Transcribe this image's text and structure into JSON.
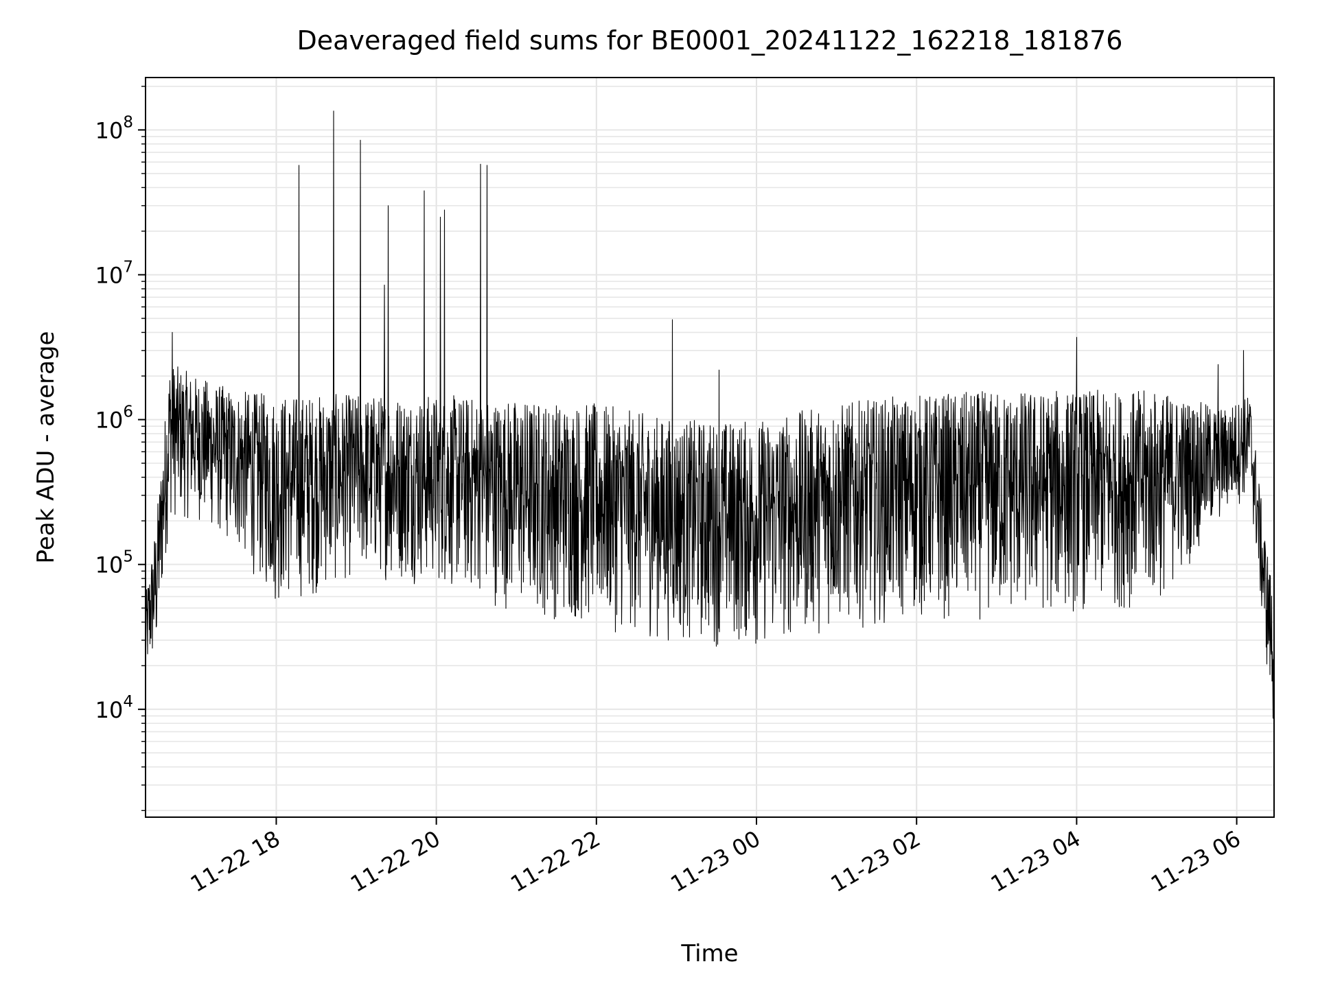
{
  "chart_data": {
    "type": "line",
    "title": "Deaveraged field sums for BE0001_20241122_162218_181876",
    "xlabel": "Time",
    "ylabel": "Peak ADU - average",
    "y_scale": "log",
    "ylim": [
      1800,
      230000000
    ],
    "xlim": [
      "2024-11-22 16:22",
      "2024-11-23 06:28"
    ],
    "grid": true,
    "line_color": "#000000",
    "x_ticks": [
      {
        "time": "2024-11-22 18:00",
        "label": "11-22 18"
      },
      {
        "time": "2024-11-22 20:00",
        "label": "11-22 20"
      },
      {
        "time": "2024-11-22 22:00",
        "label": "11-22 22"
      },
      {
        "time": "2024-11-23 00:00",
        "label": "11-23 00"
      },
      {
        "time": "2024-11-23 02:00",
        "label": "11-23 02"
      },
      {
        "time": "2024-11-23 04:00",
        "label": "11-23 04"
      },
      {
        "time": "2024-11-23 06:00",
        "label": "11-23 06"
      }
    ],
    "y_ticks": [
      {
        "value": 10000,
        "base": "10",
        "exp": "4"
      },
      {
        "value": 100000,
        "base": "10",
        "exp": "5"
      },
      {
        "value": 1000000,
        "base": "10",
        "exp": "6"
      },
      {
        "value": 10000000,
        "base": "10",
        "exp": "7"
      },
      {
        "value": 100000000,
        "base": "10",
        "exp": "8"
      }
    ],
    "envelope": [
      {
        "time": "2024-11-22 16:22",
        "low": 15000,
        "high": 60000
      },
      {
        "time": "2024-11-22 16:30",
        "low": 20000,
        "high": 200000
      },
      {
        "time": "2024-11-22 16:40",
        "low": 200000,
        "high": 2500000
      },
      {
        "time": "2024-11-22 17:00",
        "low": 200000,
        "high": 2000000
      },
      {
        "time": "2024-11-22 17:30",
        "low": 120000,
        "high": 1600000
      },
      {
        "time": "2024-11-22 18:00",
        "low": 50000,
        "high": 1500000
      },
      {
        "time": "2024-11-22 18:30",
        "low": 60000,
        "high": 1500000
      },
      {
        "time": "2024-11-22 19:00",
        "low": 80000,
        "high": 1500000
      },
      {
        "time": "2024-11-22 20:00",
        "low": 70000,
        "high": 1500000
      },
      {
        "time": "2024-11-22 21:00",
        "low": 45000,
        "high": 1400000
      },
      {
        "time": "2024-11-22 22:00",
        "low": 35000,
        "high": 1300000
      },
      {
        "time": "2024-11-22 23:00",
        "low": 28000,
        "high": 1000000
      },
      {
        "time": "2024-11-23 00:00",
        "low": 25000,
        "high": 1000000
      },
      {
        "time": "2024-11-23 01:00",
        "low": 35000,
        "high": 1300000
      },
      {
        "time": "2024-11-23 02:00",
        "low": 40000,
        "high": 1500000
      },
      {
        "time": "2024-11-23 03:00",
        "low": 40000,
        "high": 1600000
      },
      {
        "time": "2024-11-23 04:00",
        "low": 45000,
        "high": 1600000
      },
      {
        "time": "2024-11-23 05:00",
        "low": 50000,
        "high": 1600000
      },
      {
        "time": "2024-11-23 05:50",
        "low": 200000,
        "high": 1200000
      },
      {
        "time": "2024-11-23 06:10",
        "low": 300000,
        "high": 1500000
      },
      {
        "time": "2024-11-23 06:20",
        "low": 30000,
        "high": 200000
      },
      {
        "time": "2024-11-23 06:28",
        "low": 6000,
        "high": 60000
      }
    ],
    "spikes": [
      {
        "time": "2024-11-22 16:42",
        "value": 4000000
      },
      {
        "time": "2024-11-22 18:17",
        "value": 57000000
      },
      {
        "time": "2024-11-22 18:43",
        "value": 135000000
      },
      {
        "time": "2024-11-22 19:03",
        "value": 85000000
      },
      {
        "time": "2024-11-22 19:21",
        "value": 8500000
      },
      {
        "time": "2024-11-22 19:24",
        "value": 30000000
      },
      {
        "time": "2024-11-22 19:51",
        "value": 38000000
      },
      {
        "time": "2024-11-22 20:03",
        "value": 25000000
      },
      {
        "time": "2024-11-22 20:06",
        "value": 28000000
      },
      {
        "time": "2024-11-22 20:33",
        "value": 58000000
      },
      {
        "time": "2024-11-22 20:38",
        "value": 57000000
      },
      {
        "time": "2024-11-22 22:57",
        "value": 4900000
      },
      {
        "time": "2024-11-22 23:32",
        "value": 2200000
      },
      {
        "time": "2024-11-23 04:00",
        "value": 3700000
      },
      {
        "time": "2024-11-23 05:46",
        "value": 2400000
      },
      {
        "time": "2024-11-23 06:05",
        "value": 3000000
      }
    ]
  }
}
